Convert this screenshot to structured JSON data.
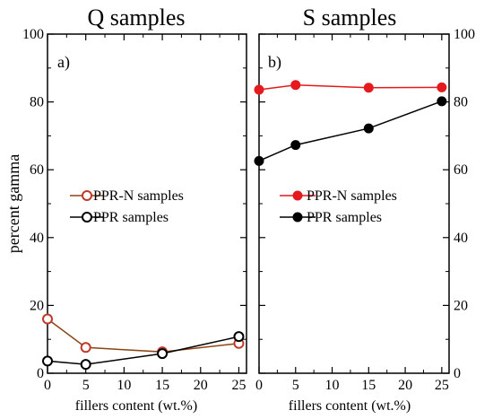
{
  "chart_data": [
    {
      "type": "line",
      "title": "Q samples",
      "panel_label": "a)",
      "xlabel": "fillers content (wt.%)",
      "ylabel": "percent gamma",
      "xlim": [
        0,
        26
      ],
      "ylim": [
        0,
        100
      ],
      "xticks": [
        0,
        5,
        10,
        15,
        20,
        25
      ],
      "yticks": [
        0,
        20,
        40,
        60,
        80,
        100
      ],
      "legend_position": "center-left",
      "series": [
        {
          "name": "PPR-N samples",
          "marker": "open-circle",
          "line_color": "#8b4513",
          "marker_color": "#c0392b",
          "points": [
            [
              0,
              16
            ],
            [
              5,
              7.6
            ],
            [
              15,
              6.3
            ],
            [
              25,
              8.8
            ]
          ]
        },
        {
          "name": "PPR samples",
          "marker": "open-circle",
          "line_color": "#000000",
          "marker_color": "#000000",
          "points": [
            [
              0,
              3.6
            ],
            [
              5,
              2.6
            ],
            [
              15,
              5.8
            ],
            [
              25,
              10.8
            ]
          ]
        }
      ]
    },
    {
      "type": "line",
      "title": "S samples",
      "panel_label": "b)",
      "xlabel": "fillers content (wt.%)",
      "ylabel": "",
      "xlim": [
        0,
        26
      ],
      "ylim": [
        0,
        100
      ],
      "xticks": [
        0,
        5,
        10,
        15,
        20,
        25
      ],
      "yticks": [
        0,
        20,
        40,
        60,
        80,
        100
      ],
      "legend_position": "center-left",
      "series": [
        {
          "name": "PPR-N samples",
          "marker": "filled-circle",
          "line_color": "#e41a1c",
          "marker_color": "#e41a1c",
          "points": [
            [
              0,
              83.6
            ],
            [
              5,
              85
            ],
            [
              15,
              84.2
            ],
            [
              25,
              84.3
            ]
          ]
        },
        {
          "name": "PPR samples",
          "marker": "filled-circle",
          "line_color": "#000000",
          "marker_color": "#000000",
          "points": [
            [
              0,
              62.6
            ],
            [
              5,
              67.3
            ],
            [
              15,
              72.2
            ],
            [
              25,
              80.2
            ]
          ]
        }
      ]
    }
  ]
}
